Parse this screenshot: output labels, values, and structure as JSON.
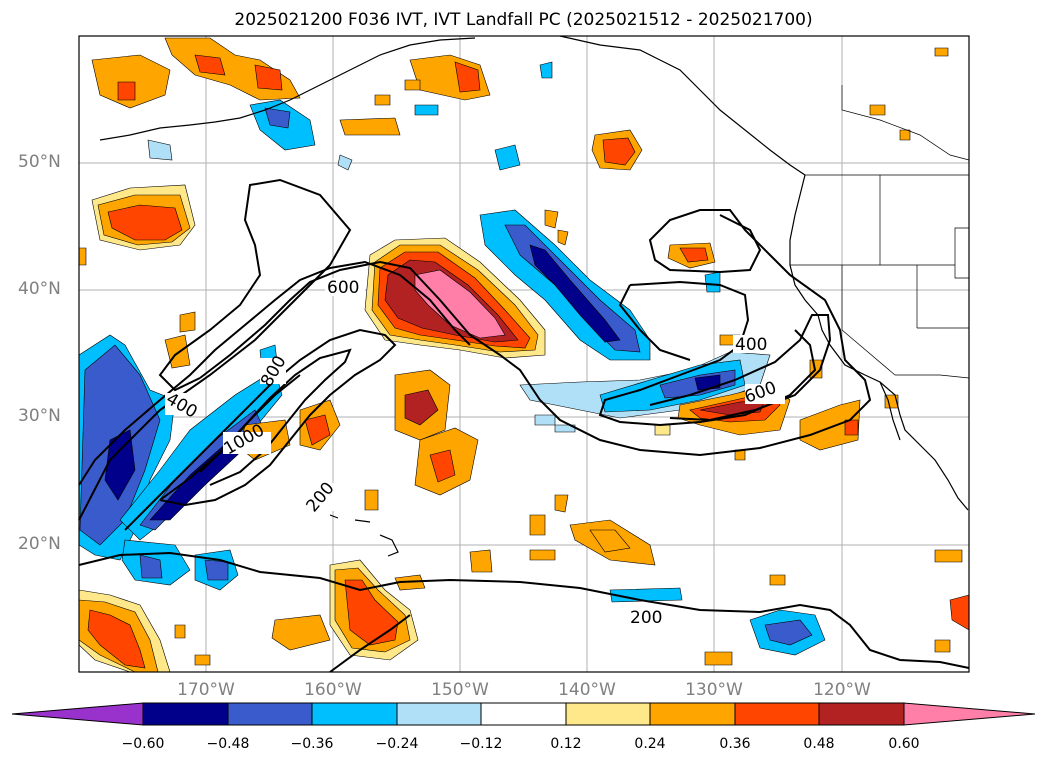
{
  "title": "2025021200 F036 IVT, IVT Landfall PC (2025021512 - 2025021700)",
  "map": {
    "projection": "PlateCarree",
    "lon_range": [
      -180,
      -110
    ],
    "lat_range": [
      10,
      60
    ],
    "grid": true,
    "lat_ticks": [
      "50°N",
      "40°N",
      "30°N",
      "20°N"
    ],
    "lon_ticks": [
      "170°W",
      "160°W",
      "150°W",
      "140°W",
      "130°W",
      "120°W"
    ],
    "ivt_contour_labels": [
      "600",
      "800",
      "400",
      "1000",
      "200",
      "400",
      "600",
      "200"
    ]
  },
  "colorbar": {
    "tick_labels": [
      "−0.60",
      "−0.48",
      "−0.36",
      "−0.24",
      "−0.12",
      "0.12",
      "0.24",
      "0.36",
      "0.48",
      "0.60"
    ],
    "colors": [
      "#9932cc",
      "#00008b",
      "#3a5bcc",
      "#00bfff",
      "#b0e0f8",
      "#ffffff",
      "#ffe88a",
      "#ffa500",
      "#ff4500",
      "#b22222",
      "#ff7fa8"
    ],
    "extend": "both"
  }
}
